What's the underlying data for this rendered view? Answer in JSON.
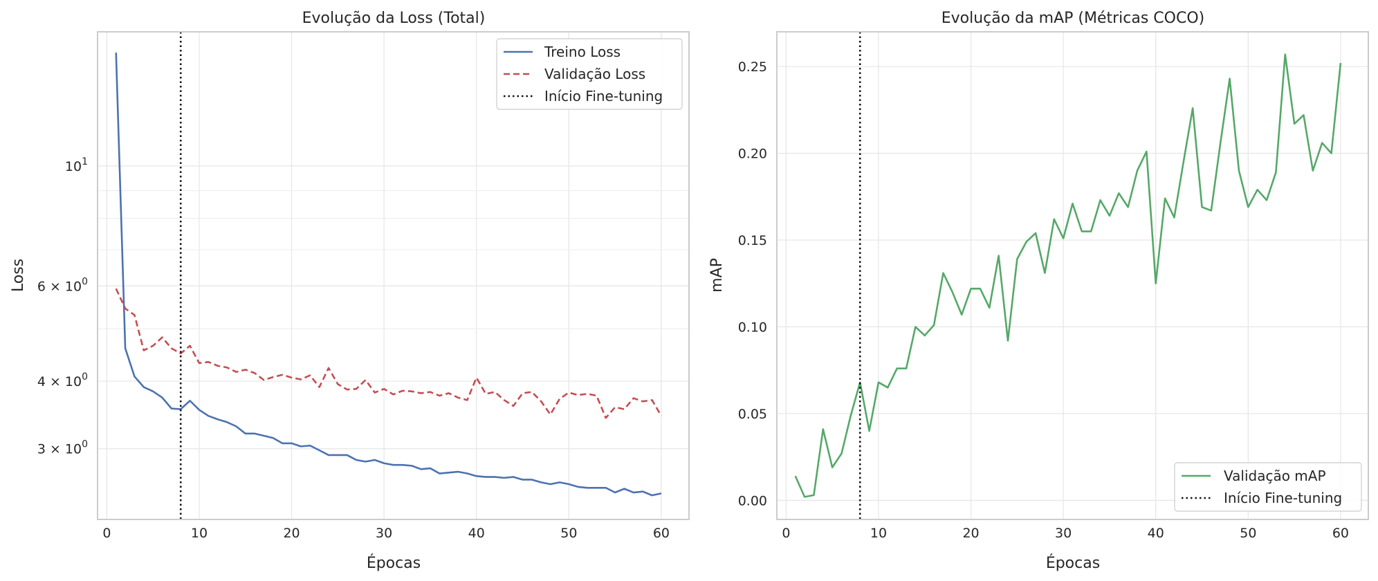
{
  "chart_data": [
    {
      "type": "line",
      "title": "Evolução da Loss (Total)",
      "xlabel": "Épocas",
      "ylabel": "Loss",
      "yscale": "log",
      "xlim": [
        -1,
        63
      ],
      "ylim": [
        2.22,
        17.7
      ],
      "xticks": [
        0,
        10,
        20,
        30,
        40,
        50,
        60
      ],
      "xtick_labels": [
        "0",
        "10",
        "20",
        "30",
        "40",
        "50",
        "60"
      ],
      "yticks": [
        10,
        6,
        4,
        3
      ],
      "ytick_labels": [
        "10",
        "6 × 10",
        "4 × 10",
        "3 × 10"
      ],
      "ytick_exponents": [
        "1",
        "0",
        "0",
        "0"
      ],
      "minor_yticks": [
        5,
        7,
        8,
        9
      ],
      "grid": true,
      "legend_position": "top-right",
      "x": [
        1,
        2,
        3,
        4,
        5,
        6,
        7,
        8,
        9,
        10,
        11,
        12,
        13,
        14,
        15,
        16,
        17,
        18,
        19,
        20,
        21,
        22,
        23,
        24,
        25,
        26,
        27,
        28,
        29,
        30,
        31,
        32,
        33,
        34,
        35,
        36,
        37,
        38,
        39,
        40,
        41,
        42,
        43,
        44,
        45,
        46,
        47,
        48,
        49,
        50,
        51,
        52,
        53,
        54,
        55,
        56,
        57,
        58,
        59,
        60
      ],
      "series": [
        {
          "name": "Treino Loss",
          "color": "#4c72b0",
          "style": "solid",
          "values": [
            16.2,
            4.6,
            4.08,
            3.9,
            3.83,
            3.73,
            3.56,
            3.55,
            3.68,
            3.54,
            3.45,
            3.4,
            3.36,
            3.3,
            3.2,
            3.2,
            3.17,
            3.14,
            3.07,
            3.07,
            3.03,
            3.04,
            2.98,
            2.92,
            2.92,
            2.92,
            2.86,
            2.84,
            2.86,
            2.82,
            2.8,
            2.8,
            2.79,
            2.75,
            2.76,
            2.7,
            2.71,
            2.72,
            2.7,
            2.67,
            2.66,
            2.66,
            2.65,
            2.66,
            2.63,
            2.63,
            2.6,
            2.58,
            2.6,
            2.58,
            2.55,
            2.54,
            2.54,
            2.54,
            2.49,
            2.53,
            2.49,
            2.5,
            2.46,
            2.48
          ]
        },
        {
          "name": "Validação Loss",
          "color": "#c44e52",
          "style": "dashed",
          "values": [
            5.93,
            5.45,
            5.3,
            4.56,
            4.65,
            4.82,
            4.6,
            4.5,
            4.65,
            4.32,
            4.34,
            4.27,
            4.24,
            4.16,
            4.2,
            4.14,
            4.02,
            4.07,
            4.11,
            4.06,
            4.03,
            4.1,
            3.9,
            4.23,
            3.95,
            3.86,
            3.87,
            4.02,
            3.81,
            3.87,
            3.78,
            3.84,
            3.83,
            3.8,
            3.82,
            3.76,
            3.8,
            3.73,
            3.69,
            4.06,
            3.79,
            3.82,
            3.69,
            3.6,
            3.8,
            3.82,
            3.67,
            3.47,
            3.71,
            3.81,
            3.77,
            3.79,
            3.76,
            3.42,
            3.58,
            3.55,
            3.72,
            3.67,
            3.69,
            3.45
          ]
        },
        {
          "name": "Início Fine-tuning",
          "color": "#111111",
          "style": "dotted",
          "vline_x": 8
        }
      ]
    },
    {
      "type": "line",
      "title": "Evolução da mAP (Métricas COCO)",
      "xlabel": "Épocas",
      "ylabel": "mAP",
      "yscale": "linear",
      "xlim": [
        -1,
        63
      ],
      "ylim": [
        -0.011,
        0.27
      ],
      "xticks": [
        0,
        10,
        20,
        30,
        40,
        50,
        60
      ],
      "xtick_labels": [
        "0",
        "10",
        "20",
        "30",
        "40",
        "50",
        "60"
      ],
      "yticks": [
        0.0,
        0.05,
        0.1,
        0.15,
        0.2,
        0.25
      ],
      "ytick_labels": [
        "0.00",
        "0.05",
        "0.10",
        "0.15",
        "0.20",
        "0.25"
      ],
      "grid": true,
      "legend_position": "bottom-right",
      "x": [
        1,
        2,
        3,
        4,
        5,
        6,
        7,
        8,
        9,
        10,
        11,
        12,
        13,
        14,
        15,
        16,
        17,
        18,
        19,
        20,
        21,
        22,
        23,
        24,
        25,
        26,
        27,
        28,
        29,
        30,
        31,
        32,
        33,
        34,
        35,
        36,
        37,
        38,
        39,
        40,
        41,
        42,
        43,
        44,
        45,
        46,
        47,
        48,
        49,
        50,
        51,
        52,
        53,
        54,
        55,
        56,
        57,
        58,
        59,
        60
      ],
      "series": [
        {
          "name": "Validação mAP",
          "color": "#55a868",
          "style": "solid",
          "values": [
            0.014,
            0.002,
            0.003,
            0.041,
            0.019,
            0.027,
            0.049,
            0.068,
            0.04,
            0.068,
            0.065,
            0.076,
            0.076,
            0.1,
            0.095,
            0.101,
            0.131,
            0.12,
            0.107,
            0.122,
            0.122,
            0.111,
            0.141,
            0.092,
            0.139,
            0.149,
            0.154,
            0.131,
            0.162,
            0.151,
            0.171,
            0.155,
            0.155,
            0.173,
            0.164,
            0.177,
            0.169,
            0.19,
            0.201,
            0.125,
            0.174,
            0.163,
            0.195,
            0.226,
            0.169,
            0.167,
            0.206,
            0.243,
            0.19,
            0.169,
            0.179,
            0.173,
            0.189,
            0.257,
            0.217,
            0.222,
            0.19,
            0.206,
            0.2,
            0.252
          ]
        },
        {
          "name": "Início Fine-tuning",
          "color": "#111111",
          "style": "dotted",
          "vline_x": 8
        }
      ]
    }
  ]
}
